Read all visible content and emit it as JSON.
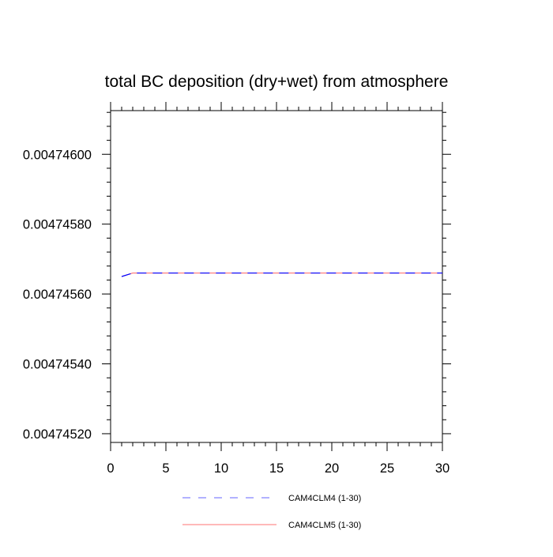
{
  "chart_data": {
    "type": "line",
    "title": "total BC deposition (dry+wet) from atmosphere",
    "xlabel": "",
    "ylabel": "",
    "xlim": [
      0,
      30
    ],
    "ylim": [
      0.004745175,
      0.004746125
    ],
    "x_ticks": [
      0,
      5,
      10,
      15,
      20,
      25,
      30
    ],
    "x_tick_labels": [
      "0",
      "5",
      "10",
      "15",
      "20",
      "25",
      "30"
    ],
    "y_ticks": [
      0.0047452,
      0.0047454,
      0.0047456,
      0.0047458,
      0.004746
    ],
    "y_tick_labels": [
      "0.00474520",
      "0.00474540",
      "0.00474560",
      "0.00474580",
      "0.00474600"
    ],
    "grid": false,
    "legend_position": "bottom",
    "series": [
      {
        "name": "CAM4CLM4 (1-30)",
        "color": "#0000ff",
        "dash": "dashed",
        "x": [
          1,
          2,
          3,
          4,
          5,
          6,
          7,
          8,
          9,
          10,
          11,
          12,
          13,
          14,
          15,
          16,
          17,
          18,
          19,
          20,
          21,
          22,
          23,
          24,
          25,
          26,
          27,
          28,
          29,
          30
        ],
        "y": [
          0.00474565,
          0.00474566,
          0.00474566,
          0.00474566,
          0.00474566,
          0.00474566,
          0.00474566,
          0.00474566,
          0.00474566,
          0.00474566,
          0.00474566,
          0.00474566,
          0.00474566,
          0.00474566,
          0.00474566,
          0.00474566,
          0.00474566,
          0.00474566,
          0.00474566,
          0.00474566,
          0.00474566,
          0.00474566,
          0.00474566,
          0.00474566,
          0.00474566,
          0.00474566,
          0.00474566,
          0.00474566,
          0.00474566,
          0.00474566
        ]
      },
      {
        "name": "CAM4CLM5 (1-30)",
        "color": "#ff0000",
        "dash": "solid",
        "x": [
          1,
          2,
          3,
          4,
          5,
          6,
          7,
          8,
          9,
          10,
          11,
          12,
          13,
          14,
          15,
          16,
          17,
          18,
          19,
          20,
          21,
          22,
          23,
          24,
          25,
          26,
          27,
          28,
          29,
          30
        ],
        "y": [
          0.00474565,
          0.00474566,
          0.00474566,
          0.00474566,
          0.00474566,
          0.00474566,
          0.00474566,
          0.00474566,
          0.00474566,
          0.00474566,
          0.00474566,
          0.00474566,
          0.00474566,
          0.00474566,
          0.00474566,
          0.00474566,
          0.00474566,
          0.00474566,
          0.00474566,
          0.00474566,
          0.00474566,
          0.00474566,
          0.00474566,
          0.00474566,
          0.00474566,
          0.00474566,
          0.00474566,
          0.00474566,
          0.00474566,
          0.00474566
        ]
      }
    ]
  }
}
